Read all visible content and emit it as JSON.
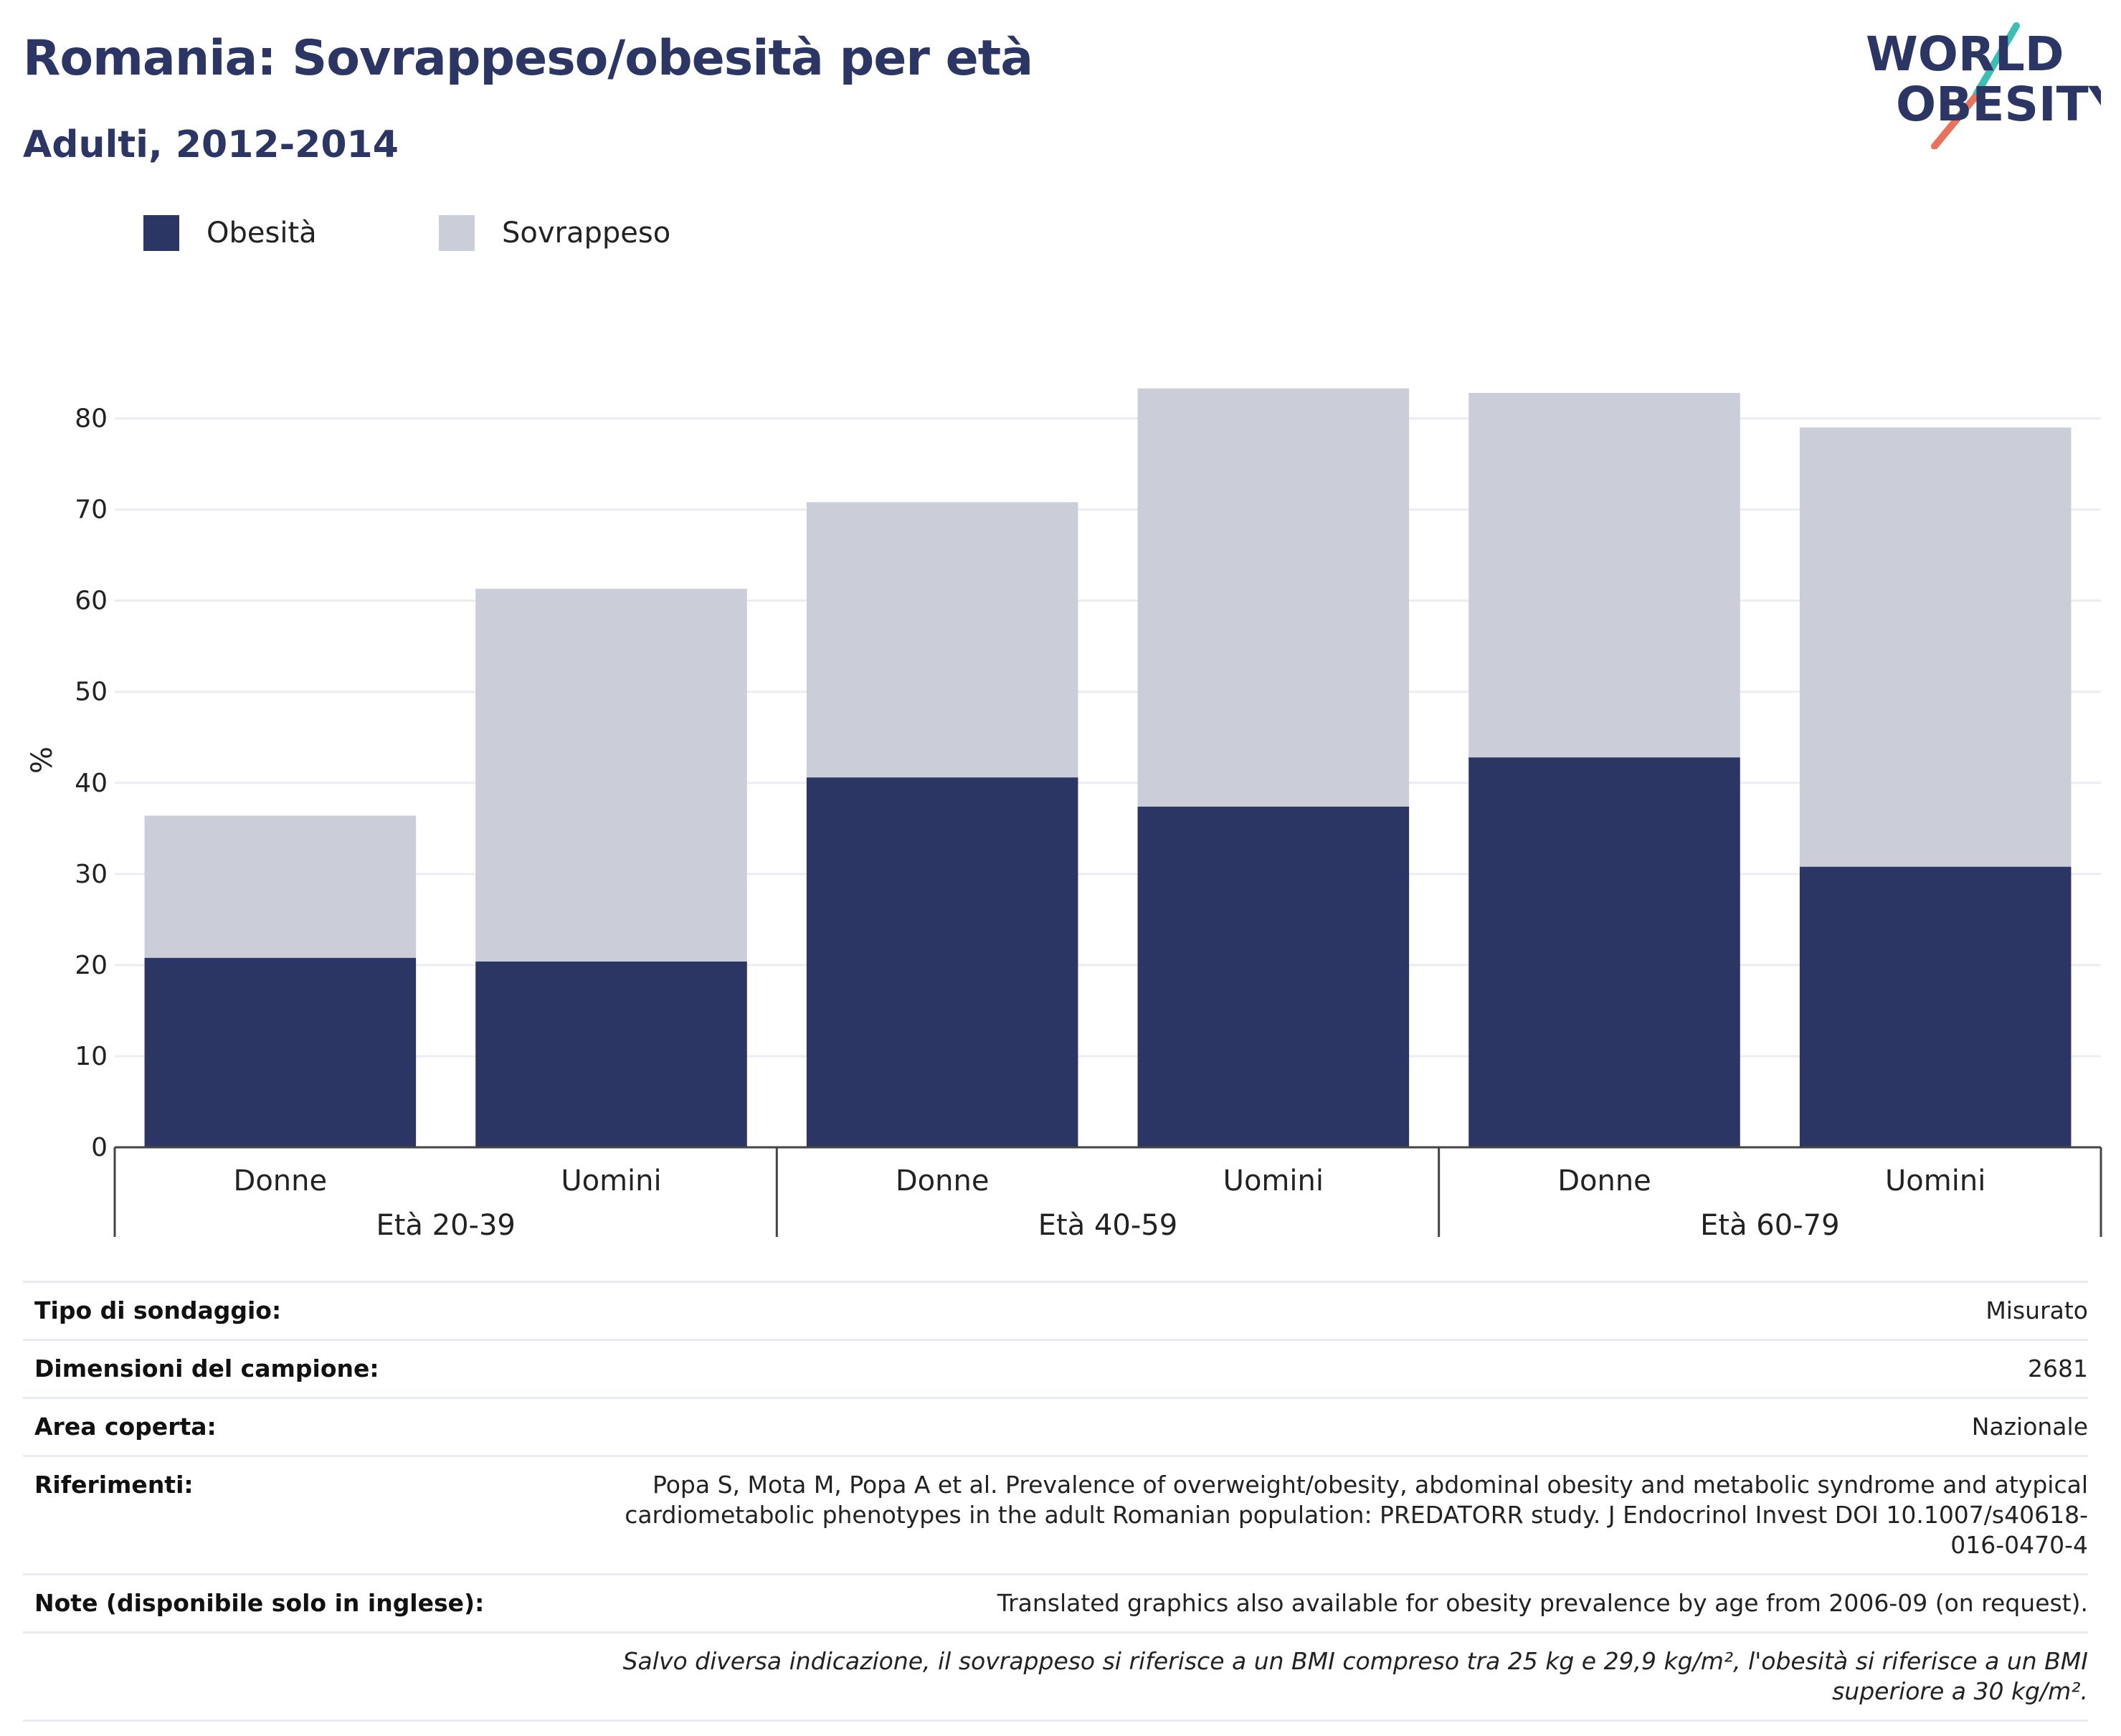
{
  "header": {
    "title": "Romania: Sovrappeso/obesità per età",
    "subtitle": "Adulti, 2012-2014"
  },
  "logo": {
    "line1": "WORLD",
    "line2": "OBESITY"
  },
  "colors": {
    "obesity": "#2b3664",
    "overweight": "#cbcdd9",
    "text": "#2b3664"
  },
  "chart_data": {
    "type": "bar",
    "stacked": true,
    "ylabel": "%",
    "ylim": [
      0,
      85
    ],
    "yticks": [
      0,
      10,
      20,
      30,
      40,
      50,
      60,
      70,
      80
    ],
    "grid": true,
    "legend_position": "top-left",
    "groups": [
      "Età 20-39",
      "Età 40-59",
      "Età 60-79"
    ],
    "categories": [
      "Donne",
      "Uomini",
      "Donne",
      "Uomini",
      "Donne",
      "Uomini"
    ],
    "series": [
      {
        "name": "Obesità",
        "color": "#2b3664",
        "values": [
          20.8,
          20.4,
          40.6,
          37.4,
          42.8,
          30.8
        ]
      },
      {
        "name": "Sovrappeso",
        "color": "#cbcdd9",
        "values": [
          15.6,
          40.9,
          30.2,
          45.9,
          40.0,
          48.2
        ]
      }
    ]
  },
  "info": [
    {
      "label": "Tipo di sondaggio:",
      "value": "Misurato"
    },
    {
      "label": "Dimensioni del campione:",
      "value": "2681"
    },
    {
      "label": "Area coperta:",
      "value": "Nazionale"
    },
    {
      "label": "Riferimenti:",
      "value": "Popa S, Mota M, Popa A et al. Prevalence of overweight/obesity, abdominal obesity and metabolic syndrome and atypical cardiometabolic phenotypes in the adult Romanian population: PREDATORR study. J Endocrinol Invest DOI 10.1007/s40618-016-0470-4"
    },
    {
      "label": "Note (disponibile solo in inglese):",
      "value": "Translated graphics also available for obesity prevalence by age from 2006-09 (on request)."
    }
  ],
  "footnote": "Salvo diversa indicazione, il sovrappeso si riferisce a un BMI compreso tra 25 kg e 29,9 kg/m², l'obesità si riferisce a un BMI superiore a 30 kg/m²."
}
